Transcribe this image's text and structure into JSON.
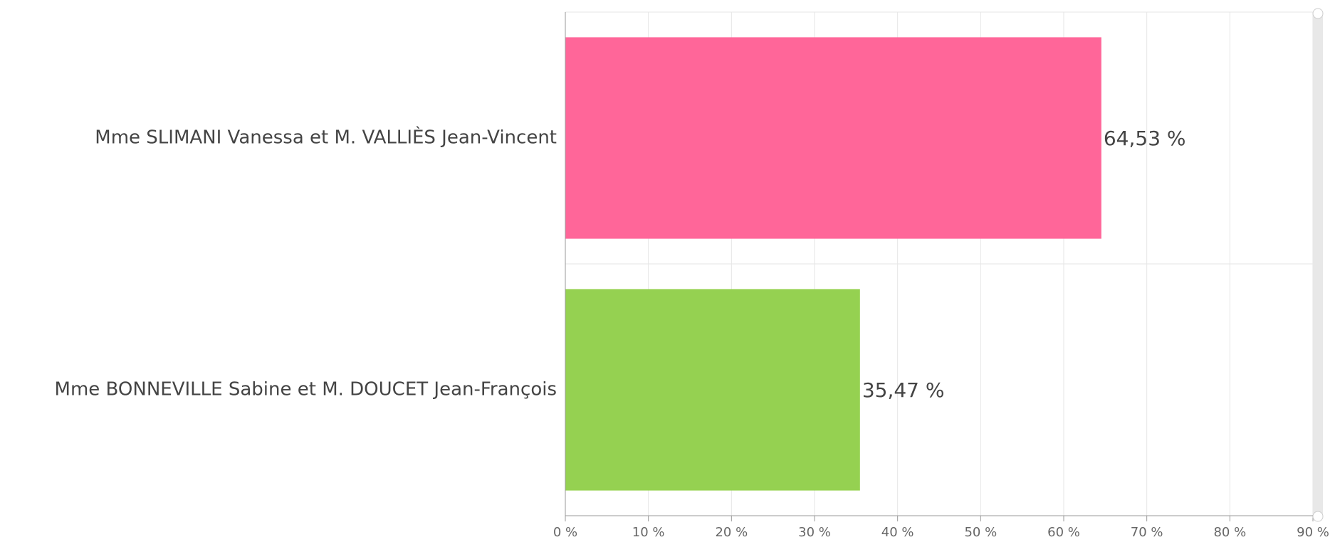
{
  "chart_data": {
    "type": "bar",
    "orientation": "horizontal",
    "categories": [
      "Mme SLIMANI Vanessa et M. VALLIÈS Jean-Vincent",
      "Mme BONNEVILLE Sabine et M. DOUCET Jean-François"
    ],
    "values": [
      64.53,
      35.47
    ],
    "value_labels": [
      "64,53 %",
      "35,47 %"
    ],
    "colors": [
      "#ff6699",
      "#95d151"
    ],
    "xlim": [
      0,
      90
    ],
    "xticks": [
      {
        "value": 0,
        "label": "0 %"
      },
      {
        "value": 10,
        "label": "10 %"
      },
      {
        "value": 20,
        "label": "20 %"
      },
      {
        "value": 30,
        "label": "30 %"
      },
      {
        "value": 40,
        "label": "40 %"
      },
      {
        "value": 50,
        "label": "50 %"
      },
      {
        "value": 60,
        "label": "60 %"
      },
      {
        "value": 70,
        "label": "70 %"
      },
      {
        "value": 80,
        "label": "80 %"
      },
      {
        "value": 90,
        "label": "90 %"
      }
    ],
    "grid": true
  }
}
